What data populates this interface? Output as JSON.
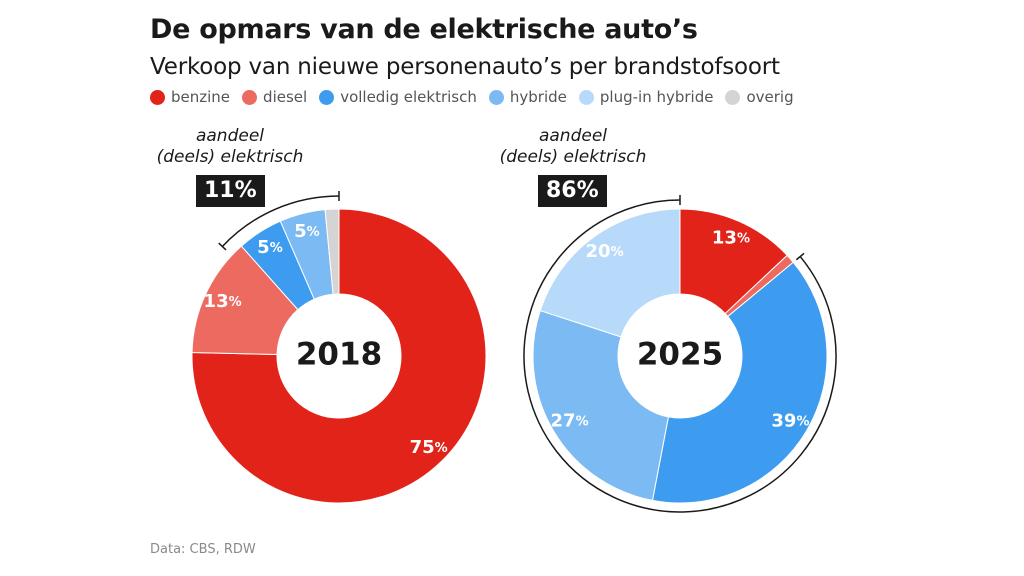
{
  "title": "De opmars van de elektrische auto’s",
  "subtitle": "Verkoop van nieuwe personenauto’s per brandstofsoort",
  "source": "Data: CBS, RDW",
  "colors": {
    "benzine": "#e2231a",
    "diesel": "#ec6a60",
    "volledig elektrisch": "#3d9cf0",
    "hybride": "#7cbaf4",
    "plug-in hybride": "#b8dafa",
    "overig": "#d4d4d4"
  },
  "legend": [
    {
      "label": "benzine",
      "color": "#e2231a"
    },
    {
      "label": "diesel",
      "color": "#ec6a60"
    },
    {
      "label": "volledig elektrisch",
      "color": "#3d9cf0"
    },
    {
      "label": "hybride",
      "color": "#7cbaf4"
    },
    {
      "label": "plug-in hybride",
      "color": "#b8dafa"
    },
    {
      "label": "overig",
      "color": "#d4d4d4"
    }
  ],
  "chart_data": [
    {
      "type": "pie",
      "year": "2018",
      "share_label_line1": "aandeel",
      "share_label_line2": "(deels) elektrisch",
      "share_value": "11%",
      "series": [
        {
          "name": "benzine",
          "value": 75,
          "label": "75"
        },
        {
          "name": "diesel",
          "value": 13,
          "label": "13"
        },
        {
          "name": "volledig elektrisch",
          "value": 5,
          "label": "5"
        },
        {
          "name": "hybride",
          "value": 5,
          "label": "5"
        },
        {
          "name": "plug-in hybride",
          "value": 0
        },
        {
          "name": "overig",
          "value": 1.5
        }
      ],
      "percent_sign": "%"
    },
    {
      "type": "pie",
      "year": "2025",
      "share_label_line1": "aandeel",
      "share_label_line2": "(deels) elektrisch",
      "share_value": "86%",
      "series": [
        {
          "name": "benzine",
          "value": 13,
          "label": "13"
        },
        {
          "name": "diesel",
          "value": 1,
          "label": ""
        },
        {
          "name": "volledig elektrisch",
          "value": 39,
          "label": "39"
        },
        {
          "name": "hybride",
          "value": 27,
          "label": "27"
        },
        {
          "name": "plug-in hybride",
          "value": 20,
          "label": "20"
        },
        {
          "name": "overig",
          "value": 0
        }
      ],
      "percent_sign": "%"
    }
  ]
}
